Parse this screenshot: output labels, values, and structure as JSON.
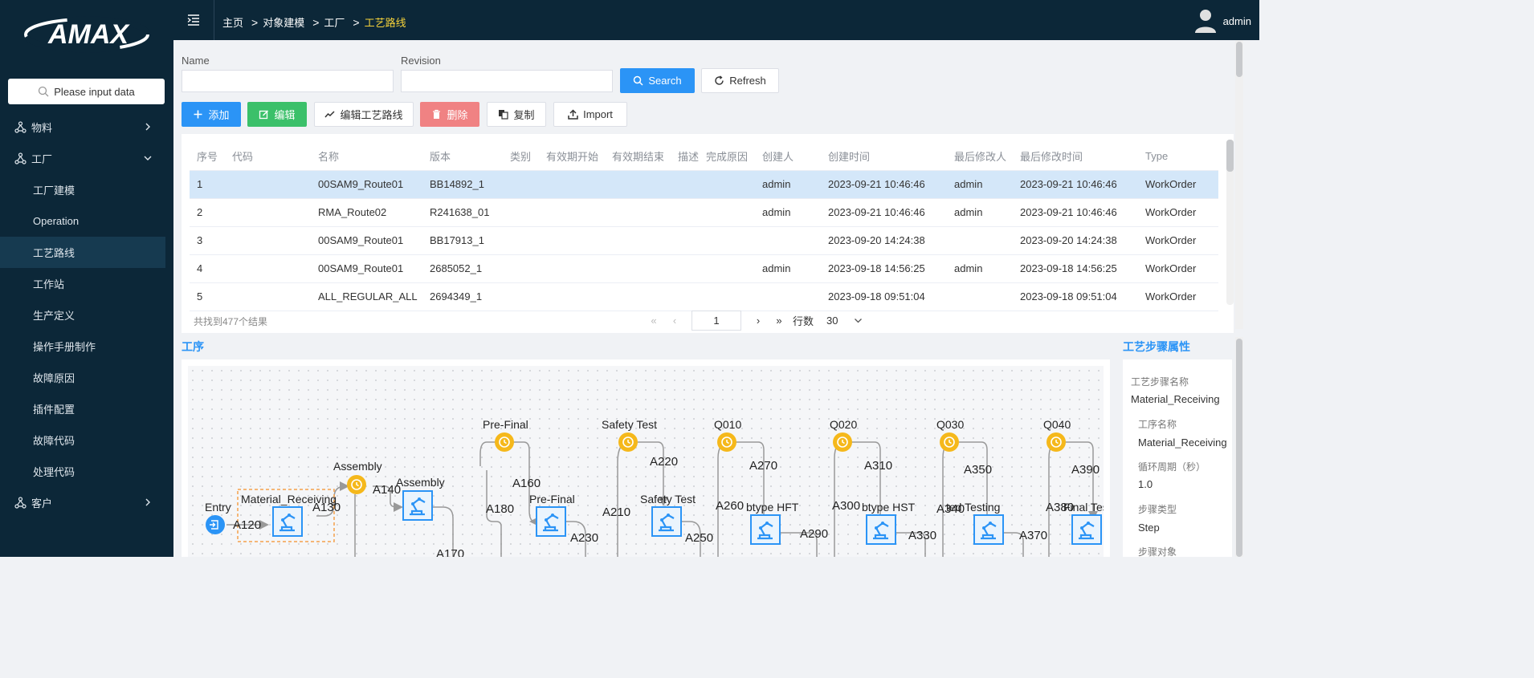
{
  "brand": {
    "logo_text": "AMAX"
  },
  "sidebar": {
    "search_placeholder": "Please input data",
    "items": [
      {
        "label": "物料",
        "level": 1,
        "icon": "hierarchy-icon",
        "chevron": "right"
      },
      {
        "label": "工厂",
        "level": 1,
        "icon": "hierarchy-icon",
        "chevron": "down"
      },
      {
        "label": "工厂建模",
        "level": 2
      },
      {
        "label": "Operation",
        "level": 2
      },
      {
        "label": "工艺路线",
        "level": 2,
        "active": true
      },
      {
        "label": "工作站",
        "level": 2
      },
      {
        "label": "生产定义",
        "level": 2
      },
      {
        "label": "操作手册制作",
        "level": 2
      },
      {
        "label": "故障原因",
        "level": 2
      },
      {
        "label": "插件配置",
        "level": 2
      },
      {
        "label": "故障代码",
        "level": 2
      },
      {
        "label": "处理代码",
        "level": 2
      },
      {
        "label": "客户",
        "level": 1,
        "icon": "hierarchy-icon",
        "chevron": "right"
      }
    ]
  },
  "header": {
    "breadcrumb": [
      "主页",
      "对象建模",
      "工厂",
      "工艺路线"
    ],
    "breadcrumb_sep": ">",
    "user": "admin"
  },
  "filters": {
    "name_label": "Name",
    "name_value": "",
    "revision_label": "Revision",
    "revision_value": "",
    "search_label": "Search",
    "refresh_label": "Refresh"
  },
  "toolbar": {
    "add": "添加",
    "edit": "编辑",
    "edit_route": "编辑工艺路线",
    "delete": "删除",
    "copy": "复制",
    "import": "Import"
  },
  "table": {
    "columns": [
      "序号",
      "代码",
      "名称",
      "版本",
      "类别",
      "有效期开始",
      "有效期结束",
      "描述",
      "完成原因",
      "创建人",
      "创建时间",
      "最后修改人",
      "最后修改时间",
      "Type"
    ],
    "rows": [
      [
        "1",
        "",
        "00SAM9_Route01",
        "BB14892_1",
        "",
        "",
        "",
        "",
        "",
        "admin",
        "2023-09-21 10:46:46",
        "admin",
        "2023-09-21 10:46:46",
        "WorkOrder"
      ],
      [
        "2",
        "",
        "RMA_Route02",
        "R241638_01",
        "",
        "",
        "",
        "",
        "",
        "admin",
        "2023-09-21 10:46:46",
        "admin",
        "2023-09-21 10:46:46",
        "WorkOrder"
      ],
      [
        "3",
        "",
        "00SAM9_Route01",
        "BB17913_1",
        "",
        "",
        "",
        "",
        "",
        "",
        "2023-09-20 14:24:38",
        "",
        "2023-09-20 14:24:38",
        "WorkOrder"
      ],
      [
        "4",
        "",
        "00SAM9_Route01",
        "2685052_1",
        "",
        "",
        "",
        "",
        "",
        "admin",
        "2023-09-18 14:56:25",
        "admin",
        "2023-09-18 14:56:25",
        "WorkOrder"
      ],
      [
        "5",
        "",
        "ALL_REGULAR_ALL",
        "2694349_1",
        "",
        "",
        "",
        "",
        "",
        "",
        "2023-09-18 09:51:04",
        "",
        "2023-09-18 09:51:04",
        "WorkOrder"
      ]
    ],
    "selected_row": 0,
    "total_text": "共找到477个结果"
  },
  "pagination": {
    "page": "1",
    "rows_label": "行数",
    "rows_value": "30"
  },
  "process": {
    "title": "工序",
    "node_labels": [
      "Entry",
      "Material_Receiving",
      "Assembly",
      "Assembly",
      "Pre-Final",
      "Pre-Final",
      "Safety Test",
      "Safety Test",
      "Q010",
      "btype HFT",
      "Q020",
      "btype HST",
      "Q030",
      "ted Testing",
      "Q040",
      "Final Tes"
    ],
    "edge_labels": [
      "A120",
      "A130",
      "A140",
      "A160",
      "A170",
      "A180",
      "A210",
      "A220",
      "A230",
      "A250",
      "A260",
      "A270",
      "A290",
      "A300",
      "A310",
      "A330",
      "A340",
      "A350",
      "A370",
      "A380",
      "A390"
    ]
  },
  "properties": {
    "title": "工艺步骤属性",
    "step_name_label": "工艺步骤名称",
    "step_name_value": "Material_Receiving",
    "op_name_label": "工序名称",
    "op_name_value": "Material_Receiving",
    "cycle_label": "循环周期（秒）",
    "cycle_value": "1.0",
    "step_type_label": "步骤类型",
    "step_type_value": "Step",
    "step_object_label": "步骤对象"
  },
  "colors": {
    "sidebar_bg": "#0c2738",
    "accent": "#2b94f6",
    "success": "#3bc06a",
    "danger": "#f08283",
    "breadcrumb_current": "#f5d23a",
    "timer_node": "#f5b81b",
    "selected_row": "#d4e7f9"
  }
}
